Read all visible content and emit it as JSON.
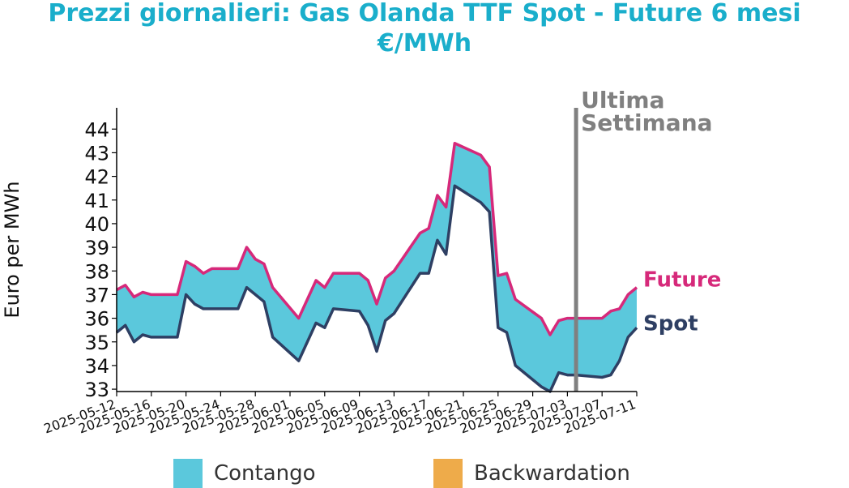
{
  "header": {
    "title_line1": "Prezzi giornalieri: Gas Olanda TTF Spot - Future 6 mesi",
    "title_line2": "€/MWh"
  },
  "colors": {
    "title": "#1aaecb",
    "future": "#d6297a",
    "spot": "#2e3f63",
    "contango": "#5bc8dc",
    "backwardation": "#eeab4a",
    "marker": "#808080"
  },
  "legend": {
    "contango_label": "Contango",
    "backwardation_label": "Backwardation"
  },
  "chart_data": {
    "type": "area",
    "title": "Prezzi giornalieri: Gas Olanda TTF Spot - Future 6 mesi €/MWh",
    "ylabel": "Euro per MWh",
    "xlabel": "",
    "ylim": [
      32.9,
      44.9
    ],
    "yticks": [
      33,
      34,
      35,
      36,
      37,
      38,
      39,
      40,
      41,
      42,
      43,
      44
    ],
    "xlim": [
      "2025-05-12",
      "2025-07-11"
    ],
    "xticks": [
      "2025-05-12",
      "2025-05-16",
      "2025-05-20",
      "2025-05-24",
      "2025-05-28",
      "2025-06-01",
      "2025-06-05",
      "2025-06-09",
      "2025-06-13",
      "2025-06-17",
      "2025-06-21",
      "2025-06-25",
      "2025-06-29",
      "2025-07-03",
      "2025-07-07",
      "2025-07-11"
    ],
    "grid": false,
    "legend_position": "bottom",
    "marker": {
      "date": "2025-07-04",
      "label_line1": "Ultima",
      "label_line2": "Settimana"
    },
    "series": [
      {
        "name": "Future",
        "x": [
          "2025-05-12",
          "2025-05-13",
          "2025-05-14",
          "2025-05-15",
          "2025-05-16",
          "2025-05-19",
          "2025-05-20",
          "2025-05-21",
          "2025-05-22",
          "2025-05-23",
          "2025-05-26",
          "2025-05-27",
          "2025-05-28",
          "2025-05-29",
          "2025-05-30",
          "2025-06-02",
          "2025-06-03",
          "2025-06-04",
          "2025-06-05",
          "2025-06-06",
          "2025-06-09",
          "2025-06-10",
          "2025-06-11",
          "2025-06-12",
          "2025-06-13",
          "2025-06-16",
          "2025-06-17",
          "2025-06-18",
          "2025-06-19",
          "2025-06-20",
          "2025-06-23",
          "2025-06-24",
          "2025-06-25",
          "2025-06-26",
          "2025-06-27",
          "2025-06-30",
          "2025-07-01",
          "2025-07-02",
          "2025-07-03",
          "2025-07-04",
          "2025-07-07",
          "2025-07-08",
          "2025-07-09",
          "2025-07-10",
          "2025-07-11"
        ],
        "values": [
          37.2,
          37.4,
          36.9,
          37.1,
          37.0,
          37.0,
          38.4,
          38.2,
          37.9,
          38.1,
          38.1,
          39.0,
          38.5,
          38.3,
          37.3,
          36.0,
          36.8,
          37.6,
          37.3,
          37.9,
          37.9,
          37.6,
          36.6,
          37.7,
          38.0,
          39.6,
          39.8,
          41.2,
          40.7,
          43.4,
          42.9,
          42.4,
          37.8,
          37.9,
          36.8,
          36.0,
          35.3,
          35.9,
          36.0,
          36.0,
          36.0,
          36.3,
          36.4,
          37.0,
          37.3
        ]
      },
      {
        "name": "Spot",
        "x": [
          "2025-05-12",
          "2025-05-13",
          "2025-05-14",
          "2025-05-15",
          "2025-05-16",
          "2025-05-19",
          "2025-05-20",
          "2025-05-21",
          "2025-05-22",
          "2025-05-23",
          "2025-05-26",
          "2025-05-27",
          "2025-05-28",
          "2025-05-29",
          "2025-05-30",
          "2025-06-02",
          "2025-06-03",
          "2025-06-04",
          "2025-06-05",
          "2025-06-06",
          "2025-06-09",
          "2025-06-10",
          "2025-06-11",
          "2025-06-12",
          "2025-06-13",
          "2025-06-16",
          "2025-06-17",
          "2025-06-18",
          "2025-06-19",
          "2025-06-20",
          "2025-06-23",
          "2025-06-24",
          "2025-06-25",
          "2025-06-26",
          "2025-06-27",
          "2025-06-30",
          "2025-07-01",
          "2025-07-02",
          "2025-07-03",
          "2025-07-04",
          "2025-07-07",
          "2025-07-08",
          "2025-07-09",
          "2025-07-10",
          "2025-07-11"
        ],
        "values": [
          35.4,
          35.7,
          35.0,
          35.3,
          35.2,
          35.2,
          37.0,
          36.6,
          36.4,
          36.4,
          36.4,
          37.3,
          37.0,
          36.7,
          35.2,
          34.2,
          35.0,
          35.8,
          35.6,
          36.4,
          36.3,
          35.7,
          34.6,
          35.9,
          36.2,
          37.9,
          37.9,
          39.3,
          38.7,
          41.6,
          40.9,
          40.5,
          35.6,
          35.4,
          34.0,
          33.1,
          32.9,
          33.7,
          33.6,
          33.6,
          33.5,
          33.6,
          34.2,
          35.2,
          35.6
        ]
      }
    ]
  }
}
